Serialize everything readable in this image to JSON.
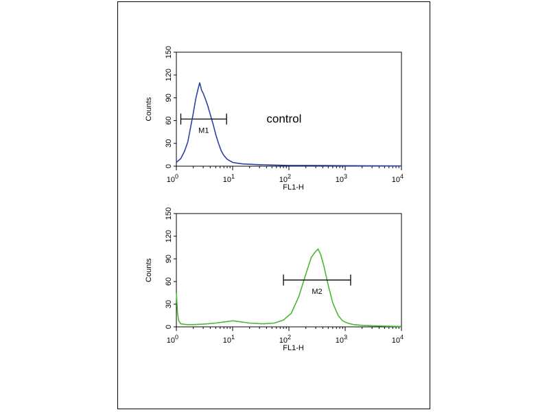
{
  "chart_data": [
    {
      "type": "line",
      "xlabel": "FL1-H",
      "ylabel": "Counts",
      "xscale": "log",
      "xlim": [
        1,
        10000
      ],
      "ylim": [
        0,
        150
      ],
      "yticks": [
        0,
        30,
        60,
        90,
        120,
        150
      ],
      "xticks": [
        {
          "base": "10",
          "exp": "0"
        },
        {
          "base": "10",
          "exp": "1"
        },
        {
          "base": "10",
          "exp": "2"
        },
        {
          "base": "10",
          "exp": "3"
        },
        {
          "base": "10",
          "exp": "4"
        }
      ],
      "grid": false,
      "color": "#2b3fa6",
      "annotation": "control",
      "marker": {
        "label": "M1",
        "x_start": 1.2,
        "x_end": 7.8,
        "y": 62
      },
      "series": [
        {
          "x": [
            1,
            1.2,
            1.4,
            1.6,
            1.8,
            2.0,
            2.2,
            2.4,
            2.6,
            2.8,
            3.0,
            3.3,
            3.6,
            4.0,
            4.5,
            5.0,
            5.6,
            6.3,
            7.0,
            8.0,
            9.0,
            10,
            12,
            15,
            20,
            30,
            50,
            100,
            200,
            500,
            1000,
            2000,
            5000,
            10000
          ],
          "y": [
            5,
            10,
            20,
            32,
            52,
            70,
            88,
            100,
            110,
            100,
            96,
            88,
            80,
            68,
            55,
            42,
            30,
            20,
            14,
            9,
            7,
            5,
            4,
            3,
            2.5,
            2,
            1.5,
            1,
            1,
            0.8,
            0.6,
            0.5,
            0.4,
            0.3
          ]
        }
      ]
    },
    {
      "type": "line",
      "xlabel": "FL1-H",
      "ylabel": "Counts",
      "xscale": "log",
      "xlim": [
        1,
        10000
      ],
      "ylim": [
        0,
        150
      ],
      "yticks": [
        0,
        30,
        60,
        90,
        120,
        150
      ],
      "xticks": [
        {
          "base": "10",
          "exp": "0"
        },
        {
          "base": "10",
          "exp": "1"
        },
        {
          "base": "10",
          "exp": "2"
        },
        {
          "base": "10",
          "exp": "3"
        },
        {
          "base": "10",
          "exp": "4"
        }
      ],
      "grid": false,
      "color": "#49b82e",
      "marker": {
        "label": "M2",
        "x_start": 80,
        "x_end": 1250,
        "y": 62
      },
      "series": [
        {
          "x": [
            1,
            1.05,
            1.1,
            1.2,
            1.5,
            2,
            3,
            5,
            8,
            10,
            13,
            20,
            35,
            55,
            80,
            110,
            150,
            200,
            250,
            300,
            330,
            370,
            420,
            500,
            600,
            750,
            900,
            1100,
            1400,
            2000,
            3000,
            5000,
            10000
          ],
          "y": [
            45,
            18,
            8,
            4,
            3,
            3,
            3.5,
            5,
            7,
            8,
            7,
            5,
            4,
            5,
            9,
            18,
            40,
            70,
            92,
            100,
            103,
            95,
            80,
            55,
            32,
            15,
            8,
            5,
            3,
            2,
            1.5,
            1,
            0.5
          ]
        }
      ]
    }
  ]
}
